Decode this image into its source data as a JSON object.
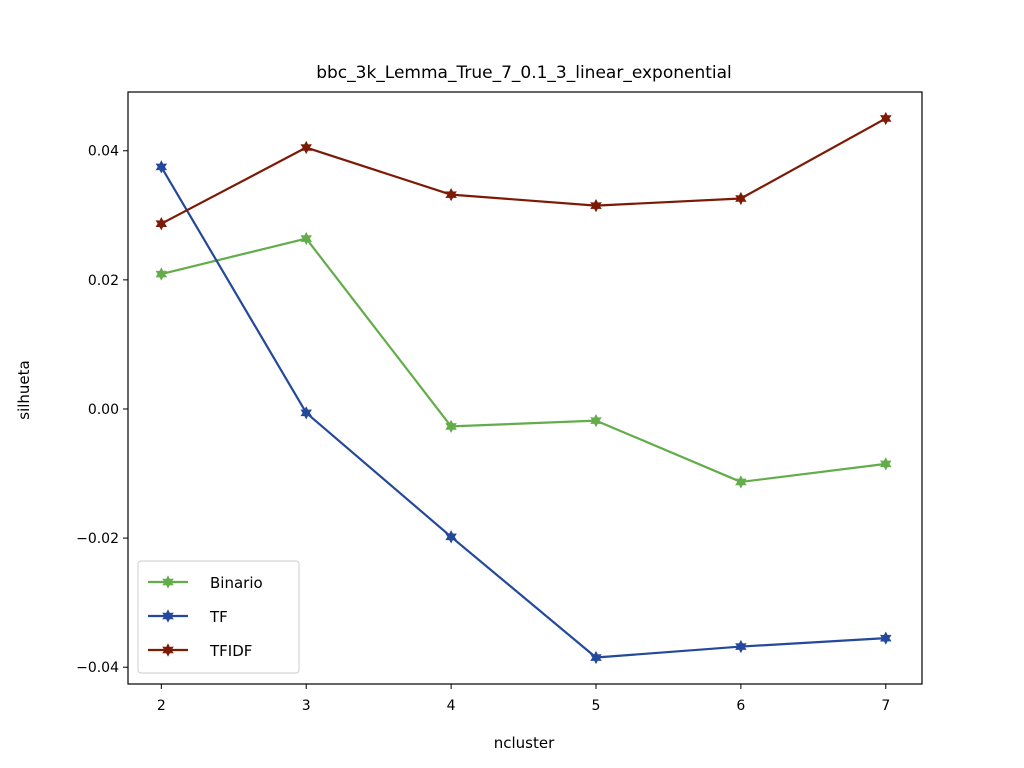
{
  "chart_data": {
    "type": "line",
    "title": "bbc_3k_Lemma_True_7_0.1_3_linear_exponential",
    "xlabel": "ncluster",
    "ylabel": "silhueta",
    "x": [
      2,
      3,
      4,
      5,
      6,
      7
    ],
    "xticks": [
      "2",
      "3",
      "4",
      "5",
      "6",
      "7"
    ],
    "xlim": [
      1.77,
      7.25
    ],
    "yticks": [
      {
        "value": 0.04,
        "label": "0.04"
      },
      {
        "value": 0.02,
        "label": "0.02"
      },
      {
        "value": 0.0,
        "label": "0.00"
      },
      {
        "value": -0.02,
        "label": "−0.02"
      },
      {
        "value": -0.04,
        "label": "−0.04"
      }
    ],
    "ylim": [
      -0.0426,
      0.0491
    ],
    "grid": false,
    "legend_position": "lower-left",
    "series": [
      {
        "name": "Binario",
        "color": "#62ad4a",
        "marker": "star",
        "values": [
          0.0209,
          0.0264,
          -0.0027,
          -0.0018,
          -0.0113,
          -0.0085
        ]
      },
      {
        "name": "TF",
        "color": "#24489a",
        "marker": "star",
        "values": [
          0.0375,
          -0.0006,
          -0.0198,
          -0.0385,
          -0.0368,
          -0.0355
        ]
      },
      {
        "name": "TFIDF",
        "color": "#7d1a06",
        "marker": "star",
        "values": [
          0.0287,
          0.0405,
          0.0332,
          0.0315,
          0.0326,
          0.045
        ]
      }
    ]
  }
}
